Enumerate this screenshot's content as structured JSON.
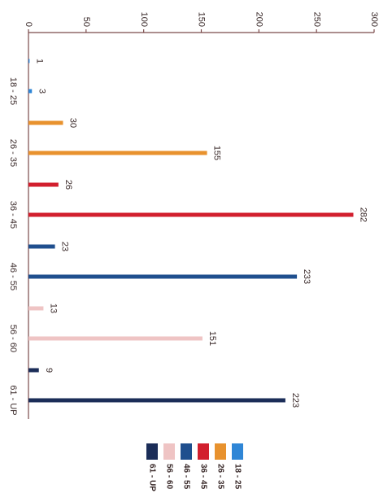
{
  "chart_data": {
    "type": "bar",
    "categories": [
      "18 - 25",
      "26 - 35",
      "36 - 45",
      "46 - 55",
      "56 - 60",
      "61 - UP"
    ],
    "colors": [
      "#2f86d6",
      "#e8922e",
      "#d21f2e",
      "#1f4f8e",
      "#efc4c4",
      "#1b2d58"
    ],
    "series": [
      {
        "values": [
          1,
          30,
          26,
          23,
          13,
          9
        ]
      },
      {
        "values": [
          3,
          155,
          282,
          233,
          151,
          223
        ]
      }
    ],
    "ylim": [
      0,
      300
    ],
    "yticks": [
      0,
      50,
      100,
      150,
      200,
      250,
      300
    ],
    "grid": false,
    "legend": "right"
  }
}
